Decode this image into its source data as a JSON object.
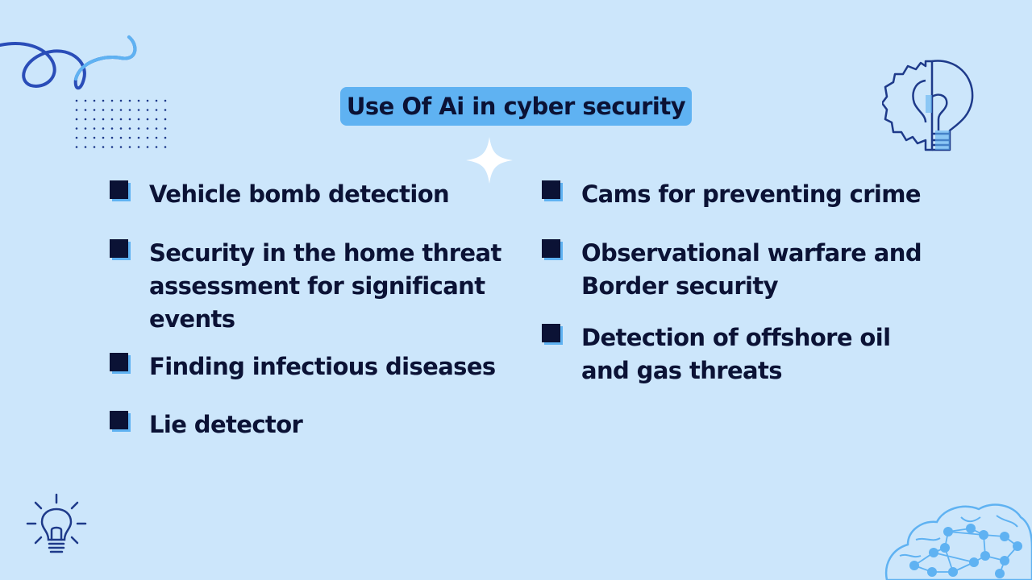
{
  "title": "Use Of Ai in cyber security",
  "left_bullets": [
    {
      "text": "Vehicle bomb detection"
    },
    {
      "text": "Security in the home threat assessment for significant events"
    },
    {
      "text": "Finding infectious diseases"
    },
    {
      "text": "Lie detector"
    }
  ],
  "right_bullets": [
    {
      "text": "Cams for preventing crime"
    },
    {
      "text": "Observational warfare and Border security"
    },
    {
      "text": "Detection of offshore oil and gas threats"
    }
  ],
  "colors": {
    "background": "#cce6fb",
    "accent": "#5fb2f2",
    "text": "#0b1235",
    "line_art": "#1e3a8a"
  },
  "icons": [
    "swirl-icon",
    "dot-grid-icon",
    "sparkle-icon",
    "gear-lightbulb-icon",
    "lightbulb-icon",
    "brain-network-icon"
  ]
}
